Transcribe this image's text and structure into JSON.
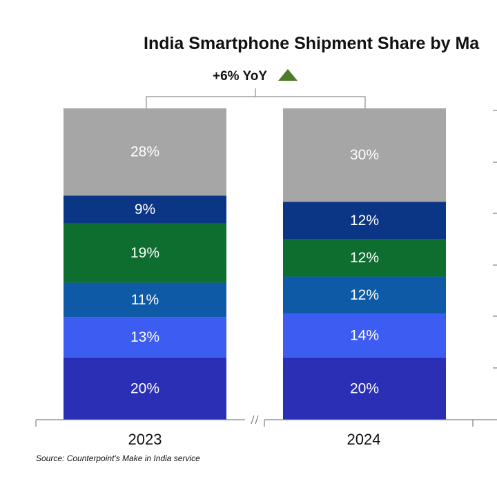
{
  "chart_data": {
    "type": "bar",
    "stacked": true,
    "title": "India Smartphone Shipment Share by Ma",
    "annotation": "+6% YoY",
    "categories": [
      "2023",
      "2024"
    ],
    "series": [
      {
        "color": "#2a2fb5",
        "values": [
          20,
          20
        ],
        "labels": [
          "20%",
          "20%"
        ]
      },
      {
        "color": "#3d5cf2",
        "values": [
          13,
          14
        ],
        "labels": [
          "13%",
          "14%"
        ]
      },
      {
        "color": "#0e5aa6",
        "values": [
          11,
          12
        ],
        "labels": [
          "11%",
          "12%"
        ]
      },
      {
        "color": "#0e6e2f",
        "values": [
          19,
          12
        ],
        "labels": [
          "19%",
          "12%"
        ]
      },
      {
        "color": "#0b3585",
        "values": [
          9,
          12
        ],
        "labels": [
          "9%",
          "12%"
        ]
      },
      {
        "color": "#a6a6a6",
        "values": [
          28,
          30
        ],
        "labels": [
          "28%",
          "30%"
        ]
      }
    ],
    "ylim": [
      0,
      100
    ],
    "xlabel": "",
    "ylabel": "",
    "grid": false,
    "source": "Source: Counterpoint's Make in India service",
    "colors": {
      "annotation_arrow": "#4e7b2a"
    }
  }
}
